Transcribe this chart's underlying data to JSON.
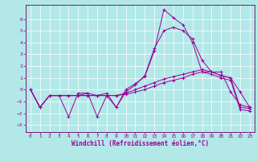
{
  "xlabel": "Windchill (Refroidissement éolien,°C)",
  "background_color": "#b3e8e8",
  "line_color": "#990099",
  "grid_color": "#ffffff",
  "spine_color": "#660066",
  "xlim": [
    -0.5,
    23.5
  ],
  "ylim": [
    -3.6,
    7.2
  ],
  "xticks": [
    0,
    1,
    2,
    3,
    4,
    5,
    6,
    7,
    8,
    9,
    10,
    11,
    12,
    13,
    14,
    15,
    16,
    17,
    18,
    19,
    20,
    21,
    22,
    23
  ],
  "yticks": [
    -3,
    -2,
    -1,
    0,
    1,
    2,
    3,
    4,
    5,
    6
  ],
  "s1_y": [
    0,
    -1.5,
    -0.5,
    -0.5,
    -2.3,
    -0.3,
    -0.3,
    -2.3,
    -0.5,
    -1.5,
    0.0,
    0.5,
    1.1,
    3.3,
    6.8,
    6.1,
    5.5,
    4.0,
    1.5,
    1.5,
    1.5,
    -0.2,
    -1.3,
    -1.5
  ],
  "s2_y": [
    0,
    -1.5,
    -0.5,
    -0.5,
    -0.5,
    -0.5,
    -0.3,
    -0.5,
    -0.3,
    -1.5,
    -0.2,
    0.4,
    1.2,
    3.5,
    5.0,
    5.3,
    5.0,
    4.3,
    2.5,
    1.5,
    1.2,
    1.0,
    -0.2,
    -1.5
  ],
  "s3_y": [
    0,
    -1.5,
    -0.5,
    -0.5,
    -0.5,
    -0.5,
    -0.5,
    -0.5,
    -0.5,
    -0.5,
    -0.3,
    0.0,
    0.3,
    0.6,
    0.9,
    1.1,
    1.3,
    1.5,
    1.7,
    1.5,
    1.2,
    1.0,
    -1.5,
    -1.6
  ],
  "s4_y": [
    0,
    -1.5,
    -0.5,
    -0.5,
    -0.5,
    -0.5,
    -0.5,
    -0.5,
    -0.5,
    -0.5,
    -0.4,
    -0.2,
    0.0,
    0.3,
    0.6,
    0.8,
    1.0,
    1.3,
    1.5,
    1.3,
    1.0,
    0.8,
    -1.7,
    -1.8
  ]
}
